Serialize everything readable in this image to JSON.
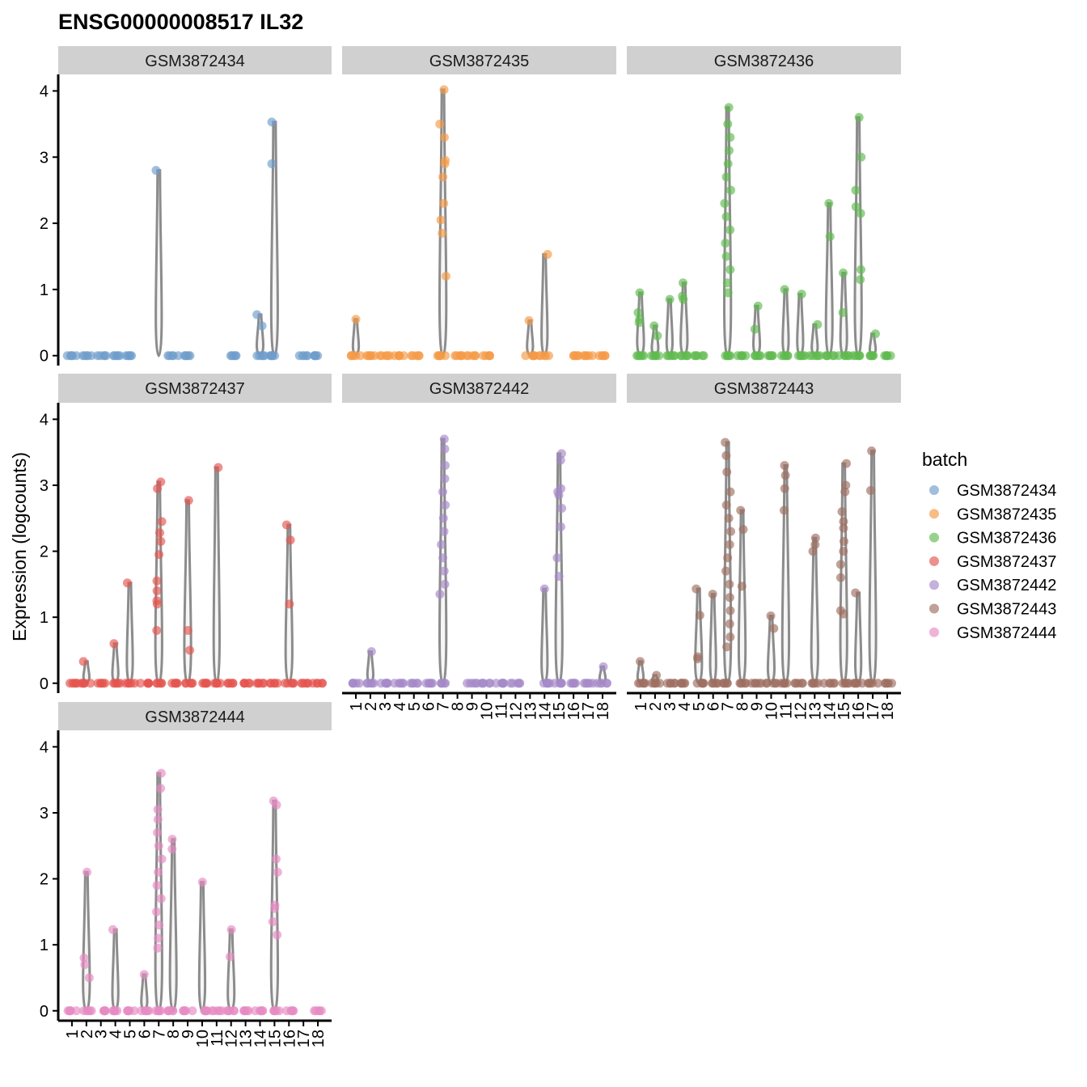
{
  "chart_data": {
    "type": "scatter",
    "title": "ENSG00000008517 IL32",
    "ylabel": "Expression (logcounts)",
    "xlabel": "",
    "ylim": [
      -0.15,
      4.25
    ],
    "yticks": [
      0,
      1,
      2,
      3,
      4
    ],
    "categories": [
      "1",
      "2",
      "3",
      "4",
      "5",
      "6",
      "7",
      "8",
      "9",
      "10",
      "11",
      "12",
      "13",
      "14",
      "15",
      "16",
      "17",
      "18"
    ],
    "legend": {
      "title": "batch",
      "position": "right"
    },
    "grid": false,
    "series": [
      {
        "name": "GSM3872434",
        "color": "#6e9ccb",
        "clusters": [
          {
            "c": 1,
            "values": []
          },
          {
            "c": 2,
            "values": []
          },
          {
            "c": 7,
            "values": [
              2.8
            ]
          },
          {
            "c": 14,
            "values": [
              0.45,
              0.62
            ]
          },
          {
            "c": 15,
            "values": [
              3.53,
              2.9
            ]
          }
        ],
        "zeros": [
          1,
          2,
          3,
          4,
          5,
          8,
          9,
          12,
          14,
          15,
          17,
          18
        ]
      },
      {
        "name": "GSM3872435",
        "color": "#f59a45",
        "clusters": [
          {
            "c": 1,
            "values": [
              0.55
            ]
          },
          {
            "c": 7,
            "values": [
              4.02,
              3.5,
              3.3,
              2.95,
              2.9,
              2.7,
              2.3,
              2.05,
              1.85,
              1.2
            ]
          },
          {
            "c": 13,
            "values": [
              0.53
            ]
          },
          {
            "c": 14,
            "values": [
              1.53
            ]
          }
        ],
        "zeros": [
          1,
          2,
          3,
          4,
          5,
          7,
          8,
          9,
          10,
          13,
          14,
          16,
          17,
          18
        ]
      },
      {
        "name": "GSM3872436",
        "color": "#5fba4f",
        "clusters": [
          {
            "c": 1,
            "values": [
              0.95,
              0.65,
              0.55,
              0.5
            ]
          },
          {
            "c": 2,
            "values": [
              0.45,
              0.3
            ]
          },
          {
            "c": 3,
            "values": [
              0.85
            ]
          },
          {
            "c": 4,
            "values": [
              1.1,
              0.9,
              0.85
            ]
          },
          {
            "c": 7,
            "values": [
              3.75,
              3.5,
              3.3,
              3.1,
              2.9,
              2.7,
              2.5,
              2.3,
              2.1,
              1.9,
              1.7,
              1.5,
              1.3,
              1.1,
              0.95
            ]
          },
          {
            "c": 9,
            "values": [
              0.75,
              0.4
            ]
          },
          {
            "c": 11,
            "values": [
              1.0
            ]
          },
          {
            "c": 12,
            "values": [
              0.93
            ]
          },
          {
            "c": 13,
            "values": [
              0.47
            ]
          },
          {
            "c": 14,
            "values": [
              2.3,
              1.8
            ]
          },
          {
            "c": 15,
            "values": [
              1.25,
              0.65
            ]
          },
          {
            "c": 16,
            "values": [
              3.6,
              3.0,
              2.5,
              2.25,
              2.15,
              1.3,
              1.15
            ]
          },
          {
            "c": 17,
            "values": [
              0.33
            ]
          }
        ],
        "zeros": [
          1,
          2,
          3,
          4,
          5,
          7,
          8,
          9,
          10,
          11,
          12,
          13,
          14,
          15,
          16,
          17,
          18
        ]
      },
      {
        "name": "GSM3872437",
        "color": "#e5554f",
        "clusters": [
          {
            "c": 2,
            "values": [
              0.33
            ]
          },
          {
            "c": 4,
            "values": [
              0.6
            ]
          },
          {
            "c": 5,
            "values": [
              1.52
            ]
          },
          {
            "c": 7,
            "values": [
              3.05,
              2.95,
              2.45,
              2.28,
              2.15,
              1.95,
              1.55,
              1.4,
              1.25,
              1.2,
              0.8
            ]
          },
          {
            "c": 9,
            "values": [
              2.77,
              0.8,
              0.5
            ]
          },
          {
            "c": 11,
            "values": [
              3.27
            ]
          },
          {
            "c": 16,
            "values": [
              2.4,
              2.17,
              1.2
            ]
          }
        ],
        "zeros": [
          1,
          2,
          3,
          4,
          5,
          6,
          7,
          8,
          9,
          10,
          11,
          12,
          13,
          14,
          15,
          16,
          17,
          18
        ]
      },
      {
        "name": "GSM3872442",
        "color": "#a588c7",
        "clusters": [
          {
            "c": 2,
            "values": [
              0.48
            ]
          },
          {
            "c": 7,
            "values": [
              3.7,
              3.55,
              3.3,
              3.1,
              2.9,
              2.7,
              2.5,
              2.3,
              2.1,
              1.9,
              1.7,
              1.5,
              1.35
            ]
          },
          {
            "c": 14,
            "values": [
              1.43
            ]
          },
          {
            "c": 15,
            "values": [
              3.48,
              3.38,
              2.95,
              2.9,
              2.85,
              2.65,
              2.37,
              1.9,
              1.62
            ]
          },
          {
            "c": 18,
            "values": [
              0.25
            ]
          }
        ],
        "zeros": [
          1,
          2,
          3,
          4,
          5,
          6,
          7,
          9,
          10,
          11,
          12,
          14,
          15,
          16,
          17,
          18
        ]
      },
      {
        "name": "GSM3872443",
        "color": "#9e6e61",
        "clusters": [
          {
            "c": 1,
            "values": [
              0.33
            ]
          },
          {
            "c": 2,
            "values": [
              0.12
            ]
          },
          {
            "c": 5,
            "values": [
              1.43,
              1.03,
              0.4,
              0.37
            ]
          },
          {
            "c": 6,
            "values": [
              1.35
            ]
          },
          {
            "c": 7,
            "values": [
              3.65,
              3.45,
              3.2,
              2.9,
              2.7,
              2.5,
              2.3,
              2.1,
              1.9,
              1.7,
              1.5,
              1.3,
              1.1,
              0.9,
              0.7,
              0.55
            ]
          },
          {
            "c": 8,
            "values": [
              2.62,
              2.33,
              1.47
            ]
          },
          {
            "c": 10,
            "values": [
              1.02,
              0.83
            ]
          },
          {
            "c": 11,
            "values": [
              3.3,
              3.15,
              2.95,
              2.62
            ]
          },
          {
            "c": 13,
            "values": [
              2.2,
              2.1,
              2.0
            ]
          },
          {
            "c": 15,
            "values": [
              3.33,
              3.0,
              2.9,
              2.6,
              2.45,
              2.35,
              2.15,
              2.0,
              1.8,
              1.6,
              1.1,
              1.05
            ]
          },
          {
            "c": 16,
            "values": [
              1.37
            ]
          },
          {
            "c": 17,
            "values": [
              3.52,
              2.92
            ]
          }
        ],
        "zeros": [
          1,
          2,
          3,
          4,
          5,
          6,
          7,
          8,
          9,
          10,
          11,
          12,
          13,
          14,
          15,
          16,
          17,
          18
        ]
      },
      {
        "name": "GSM3872444",
        "color": "#e78ac3",
        "clusters": [
          {
            "c": 2,
            "values": [
              2.1,
              0.8,
              0.7,
              0.5
            ]
          },
          {
            "c": 4,
            "values": [
              1.23
            ]
          },
          {
            "c": 6,
            "values": [
              0.55
            ]
          },
          {
            "c": 7,
            "values": [
              3.6,
              3.37,
              3.05,
              2.9,
              2.7,
              2.5,
              2.3,
              2.1,
              1.9,
              1.7,
              1.5,
              1.3,
              1.1,
              0.95
            ]
          },
          {
            "c": 8,
            "values": [
              2.6,
              2.45
            ]
          },
          {
            "c": 10,
            "values": [
              1.95
            ]
          },
          {
            "c": 12,
            "values": [
              1.23,
              0.82
            ]
          },
          {
            "c": 15,
            "values": [
              3.18,
              3.12,
              2.3,
              2.1,
              1.6,
              1.55,
              1.35,
              1.15
            ]
          }
        ],
        "zeros": [
          1,
          2,
          3,
          4,
          5,
          6,
          7,
          8,
          9,
          10,
          11,
          12,
          13,
          14,
          15,
          16,
          18
        ]
      }
    ]
  }
}
